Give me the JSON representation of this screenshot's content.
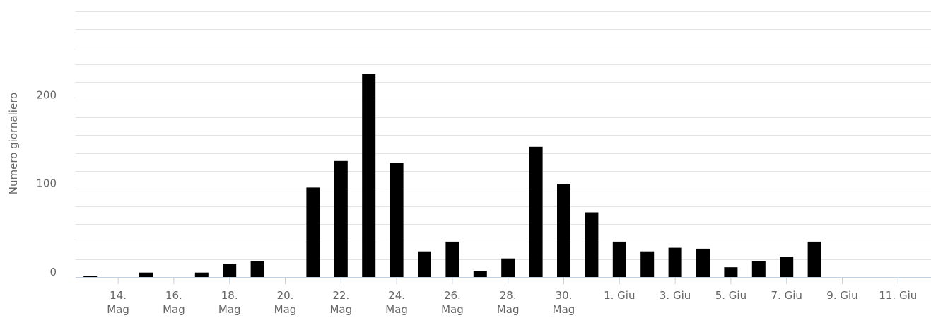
{
  "chart_data": {
    "type": "bar",
    "title": "",
    "xlabel": "",
    "ylabel": "Numero giornaliero",
    "ylim": [
      0,
      300
    ],
    "y_ticks": [
      0,
      100,
      200
    ],
    "minor_gridline_step": 20,
    "grid": true,
    "legend": "none",
    "bar_color": "#000000",
    "categories": [
      "13. Mag",
      "14. Mag",
      "15. Mag",
      "16. Mag",
      "17. Mag",
      "18. Mag",
      "19. Mag",
      "20. Mag",
      "21. Mag",
      "22. Mag",
      "23. Mag",
      "24. Mag",
      "25. Mag",
      "26. Mag",
      "27. Mag",
      "28. Mag",
      "29. Mag",
      "30. Mag",
      "31. Mag",
      "1. Giu",
      "2. Giu",
      "3. Giu",
      "4. Giu",
      "5. Giu",
      "6. Giu",
      "7. Giu",
      "8. Giu",
      "9. Giu",
      "10. Giu",
      "11. Giu",
      "12. Giu"
    ],
    "values": [
      1,
      0,
      5,
      0,
      5,
      15,
      18,
      0,
      101,
      131,
      229,
      129,
      29,
      40,
      7,
      21,
      147,
      105,
      73,
      40,
      29,
      33,
      32,
      11,
      18,
      23,
      40,
      0,
      0,
      0,
      0
    ],
    "x_tick_labels": [
      {
        "index": 1,
        "line1": "14.",
        "line2": "Mag"
      },
      {
        "index": 3,
        "line1": "16.",
        "line2": "Mag"
      },
      {
        "index": 5,
        "line1": "18.",
        "line2": "Mag"
      },
      {
        "index": 7,
        "line1": "20.",
        "line2": "Mag"
      },
      {
        "index": 9,
        "line1": "22.",
        "line2": "Mag"
      },
      {
        "index": 11,
        "line1": "24.",
        "line2": "Mag"
      },
      {
        "index": 13,
        "line1": "26.",
        "line2": "Mag"
      },
      {
        "index": 15,
        "line1": "28.",
        "line2": "Mag"
      },
      {
        "index": 17,
        "line1": "30.",
        "line2": "Mag"
      },
      {
        "index": 19,
        "line1": "1. Giu",
        "line2": ""
      },
      {
        "index": 21,
        "line1": "3. Giu",
        "line2": ""
      },
      {
        "index": 23,
        "line1": "5. Giu",
        "line2": ""
      },
      {
        "index": 25,
        "line1": "7. Giu",
        "line2": ""
      },
      {
        "index": 27,
        "line1": "9. Giu",
        "line2": ""
      },
      {
        "index": 29,
        "line1": "11. Giu",
        "line2": ""
      }
    ]
  }
}
